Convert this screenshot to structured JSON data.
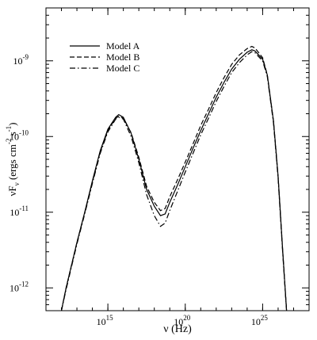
{
  "chart_data": {
    "type": "line",
    "xlabel": "ν (Hz)",
    "ylabel": "νF_ν (ergs cm^-2 s^-1)",
    "xscale": "log",
    "yscale": "log",
    "xlim": [
      100000000000.0,
      1e+28
    ],
    "ylim": [
      5e-13,
      5e-09
    ],
    "x_ticks": [
      {
        "value": 1000000000000000.0,
        "base": "10",
        "exp": "15"
      },
      {
        "value": 1e+20,
        "base": "10",
        "exp": "20"
      },
      {
        "value": 1e+25,
        "base": "10",
        "exp": "25"
      }
    ],
    "y_ticks": [
      {
        "value": 1e-12,
        "base": "10",
        "exp": "-12"
      },
      {
        "value": 1e-11,
        "base": "10",
        "exp": "-11"
      },
      {
        "value": 1e-10,
        "base": "10",
        "exp": "-10"
      },
      {
        "value": 1e-09,
        "base": "10",
        "exp": "-9"
      }
    ],
    "legend_position": "top-left",
    "grid": false,
    "series": [
      {
        "name": "Model A",
        "style": "solid",
        "points": [
          [
            1000000000000.0,
            5e-13
          ],
          [
            2000000000000.0,
            1e-12
          ],
          [
            5000000000000.0,
            2.2e-12
          ],
          [
            10000000000000.0,
            4e-12
          ],
          [
            32000000000000.0,
            1e-11
          ],
          [
            100000000000000.0,
            2.6e-11
          ],
          [
            320000000000000.0,
            6.5e-11
          ],
          [
            1000000000000000.0,
            1.25e-10
          ],
          [
            3200000000000000.0,
            1.8e-10
          ],
          [
            5000000000000000.0,
            1.95e-10
          ],
          [
            1e+16,
            1.8e-10
          ],
          [
            3.2e+16,
            1.1e-10
          ],
          [
            1e+17,
            5e-11
          ],
          [
            3.2e+17,
            2e-11
          ],
          [
            1e+18,
            1.2e-11
          ],
          [
            2.5e+18,
            9e-12
          ],
          [
            5e+18,
            9.5e-12
          ],
          [
            1e+19,
            1.35e-11
          ],
          [
            3.2e+19,
            2.3e-11
          ],
          [
            1e+20,
            4e-11
          ],
          [
            3.2e+20,
            7e-11
          ],
          [
            1e+21,
            1.2e-10
          ],
          [
            3.2e+21,
            2e-10
          ],
          [
            1e+22,
            3.3e-10
          ],
          [
            3.2e+22,
            5.2e-10
          ],
          [
            1e+23,
            7.8e-10
          ],
          [
            3.2e+23,
            1.05e-09
          ],
          [
            1e+24,
            1.3e-09
          ],
          [
            2e+24,
            1.4e-09
          ],
          [
            3.2e+24,
            1.35e-09
          ],
          [
            1e+25,
            1.05e-09
          ],
          [
            2e+25,
            6.5e-10
          ],
          [
            5e+25,
            1.6e-10
          ],
          [
            1e+26,
            3e-11
          ],
          [
            2e+26,
            3e-12
          ],
          [
            3.5e+26,
            5e-13
          ]
        ]
      },
      {
        "name": "Model B",
        "style": "dashed",
        "points": [
          [
            1000000000000.0,
            5e-13
          ],
          [
            2000000000000.0,
            1e-12
          ],
          [
            5000000000000.0,
            2.2e-12
          ],
          [
            10000000000000.0,
            4e-12
          ],
          [
            32000000000000.0,
            9.8e-12
          ],
          [
            100000000000000.0,
            2.5e-11
          ],
          [
            320000000000000.0,
            6.3e-11
          ],
          [
            1000000000000000.0,
            1.2e-10
          ],
          [
            3200000000000000.0,
            1.75e-10
          ],
          [
            5000000000000000.0,
            1.85e-10
          ],
          [
            1e+16,
            1.75e-10
          ],
          [
            3.2e+16,
            1.12e-10
          ],
          [
            1e+17,
            5.3e-11
          ],
          [
            3.2e+17,
            2.2e-11
          ],
          [
            1e+18,
            1.35e-11
          ],
          [
            2.5e+18,
            1.05e-11
          ],
          [
            5e+18,
            1.12e-11
          ],
          [
            1e+19,
            1.6e-11
          ],
          [
            3.2e+19,
            2.7e-11
          ],
          [
            1e+20,
            4.6e-11
          ],
          [
            3.2e+20,
            8e-11
          ],
          [
            1e+21,
            1.4e-10
          ],
          [
            3.2e+21,
            2.3e-10
          ],
          [
            1e+22,
            3.8e-10
          ],
          [
            3.2e+22,
            6e-10
          ],
          [
            1e+23,
            9e-10
          ],
          [
            3.2e+23,
            1.2e-09
          ],
          [
            1e+24,
            1.45e-09
          ],
          [
            2e+24,
            1.55e-09
          ],
          [
            3.2e+24,
            1.48e-09
          ],
          [
            1e+25,
            1.1e-09
          ],
          [
            2e+25,
            6.5e-10
          ],
          [
            5e+25,
            1.6e-10
          ],
          [
            1e+26,
            3e-11
          ],
          [
            2e+26,
            3e-12
          ],
          [
            3.5e+26,
            5e-13
          ]
        ]
      },
      {
        "name": "Model C",
        "style": "dash-dot",
        "points": [
          [
            1000000000000.0,
            5e-13
          ],
          [
            2000000000000.0,
            9.5e-13
          ],
          [
            5000000000000.0,
            2.1e-12
          ],
          [
            10000000000000.0,
            3.8e-12
          ],
          [
            32000000000000.0,
            9.5e-12
          ],
          [
            100000000000000.0,
            2.4e-11
          ],
          [
            320000000000000.0,
            6e-11
          ],
          [
            1000000000000000.0,
            1.15e-10
          ],
          [
            3200000000000000.0,
            1.7e-10
          ],
          [
            5000000000000000.0,
            1.8e-10
          ],
          [
            1e+16,
            1.7e-10
          ],
          [
            3.2e+16,
            1e-10
          ],
          [
            1e+17,
            4.5e-11
          ],
          [
            3.2e+17,
            1.7e-11
          ],
          [
            1e+18,
            9e-12
          ],
          [
            2.5e+18,
            6.5e-12
          ],
          [
            5e+18,
            7.2e-12
          ],
          [
            1e+19,
            1.05e-11
          ],
          [
            3.2e+19,
            1.9e-11
          ],
          [
            1e+20,
            3.4e-11
          ],
          [
            3.2e+20,
            6e-11
          ],
          [
            1e+21,
            1.05e-10
          ],
          [
            3.2e+21,
            1.75e-10
          ],
          [
            1e+22,
            2.9e-10
          ],
          [
            3.2e+22,
            4.6e-10
          ],
          [
            1e+23,
            7e-10
          ],
          [
            3.2e+23,
            9.5e-10
          ],
          [
            1e+24,
            1.2e-09
          ],
          [
            2e+24,
            1.32e-09
          ],
          [
            3.2e+24,
            1.28e-09
          ],
          [
            1e+25,
            1e-09
          ],
          [
            2e+25,
            6.2e-10
          ],
          [
            5e+25,
            1.5e-10
          ],
          [
            1e+26,
            2.8e-11
          ],
          [
            2e+26,
            2.8e-12
          ],
          [
            3.5e+26,
            5e-13
          ]
        ]
      }
    ]
  }
}
